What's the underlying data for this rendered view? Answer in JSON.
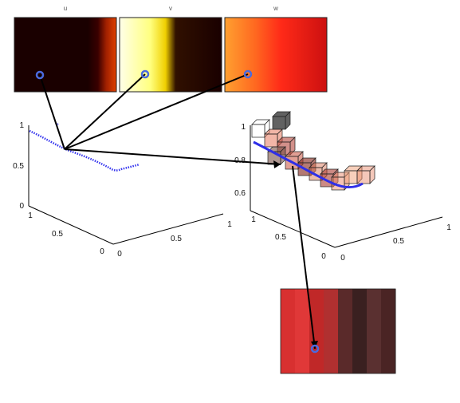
{
  "panels": [
    {
      "id": "u",
      "title": "u",
      "colors": [
        "#1a0000",
        "#1a0000",
        "#330000",
        "#9a1a00",
        "#e04000"
      ]
    },
    {
      "id": "v",
      "title": "v",
      "colors": [
        "#ffffe8",
        "#ffff70",
        "#e8d000",
        "#200000",
        "#1a0000"
      ]
    },
    {
      "id": "w",
      "title": "w",
      "colors": [
        "#ffa030",
        "#ff6020",
        "#ff2818",
        "#e01010",
        "#cc1010"
      ]
    }
  ],
  "left_plot": {
    "z_ticks": [
      "0",
      "0.5",
      "1"
    ],
    "y_ticks": [
      "1",
      "0.5",
      "0"
    ],
    "x_ticks": [
      "0",
      "0.5",
      "1"
    ],
    "curve_color": "#3333ee"
  },
  "right_plot": {
    "z_ticks": [
      "0.6",
      "0.8",
      "1"
    ],
    "y_ticks": [
      "1",
      "0.5",
      "0"
    ],
    "x_ticks": [
      "0",
      "0.5",
      "1"
    ],
    "curve_color": "#3333ee"
  },
  "zoom_patch": {
    "stripe_colors": [
      "#d83030",
      "#e03838",
      "#c02828",
      "#b03030",
      "#5a2a2a",
      "#3a2020",
      "#5a3030",
      "#4a2424"
    ]
  },
  "marker_color": "#4a6adf"
}
